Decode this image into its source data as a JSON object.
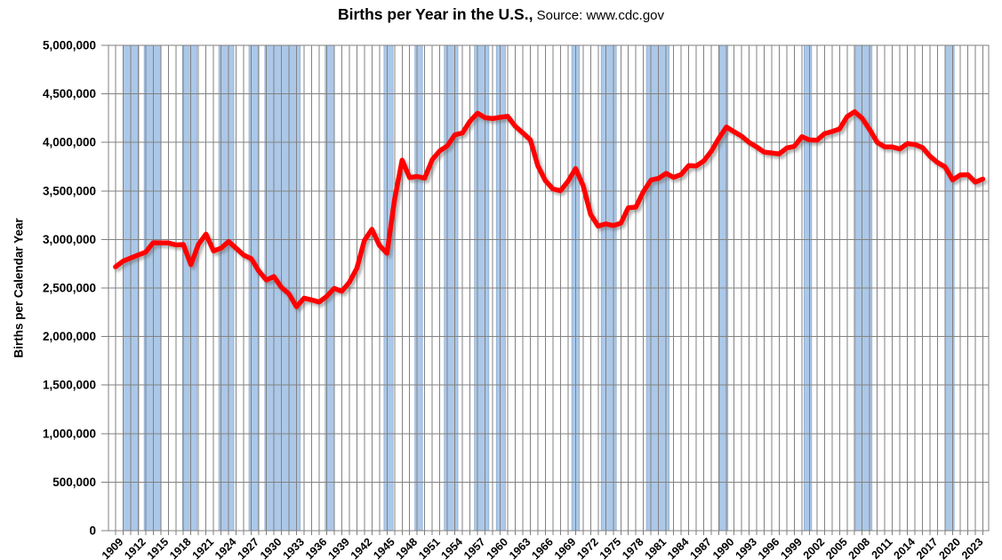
{
  "title": {
    "main": "Births per Year in the U.S.,",
    "source": " Source: www.cdc.gov"
  },
  "y_axis": {
    "title": "Births per Calendar Year",
    "tick_labels": [
      "5,000,000",
      "4,500,000",
      "4,000,000",
      "3,500,000",
      "3,000,000",
      "2,500,000",
      "2,000,000",
      "1,500,000",
      "1,000,000",
      "500,000",
      "0"
    ]
  },
  "x_axis": {
    "tick_labels": [
      "1909",
      "1912",
      "1915",
      "1918",
      "1921",
      "1924",
      "1927",
      "1930",
      "1933",
      "1936",
      "1939",
      "1942",
      "1945",
      "1948",
      "1951",
      "1954",
      "1957",
      "1960",
      "1963",
      "1966",
      "1969",
      "1972",
      "1975",
      "1978",
      "1981",
      "1984",
      "1987",
      "1990",
      "1993",
      "1996",
      "1999",
      "2002",
      "2005",
      "2008",
      "2011",
      "2014",
      "2017",
      "2020",
      "2023"
    ]
  },
  "colors": {
    "line": "#FF0000",
    "band_fill": "#ACC8E8",
    "band_stroke": "#8FAFD2",
    "gridline": "#828282",
    "border": "#7F7F7F",
    "text": "#000000"
  },
  "chart_data": {
    "type": "line",
    "title": "Births per Year in the U.S., Source: www.cdc.gov",
    "xlabel": "",
    "ylabel": "Births per Calendar Year",
    "ylim": [
      0,
      5000000
    ],
    "ytick_step": 500000,
    "xlim": [
      1909,
      2024
    ],
    "grid": "both",
    "legend": "none",
    "x": [
      1909,
      1910,
      1911,
      1912,
      1913,
      1914,
      1915,
      1916,
      1917,
      1918,
      1919,
      1920,
      1921,
      1922,
      1923,
      1924,
      1925,
      1926,
      1927,
      1928,
      1929,
      1930,
      1931,
      1932,
      1933,
      1934,
      1935,
      1936,
      1937,
      1938,
      1939,
      1940,
      1941,
      1942,
      1943,
      1944,
      1945,
      1946,
      1947,
      1948,
      1949,
      1950,
      1951,
      1952,
      1953,
      1954,
      1955,
      1956,
      1957,
      1958,
      1959,
      1960,
      1961,
      1962,
      1963,
      1964,
      1965,
      1966,
      1967,
      1968,
      1969,
      1970,
      1971,
      1972,
      1973,
      1974,
      1975,
      1976,
      1977,
      1978,
      1979,
      1980,
      1981,
      1982,
      1983,
      1984,
      1985,
      1986,
      1987,
      1988,
      1989,
      1990,
      1991,
      1992,
      1993,
      1994,
      1995,
      1996,
      1997,
      1998,
      1999,
      2000,
      2001,
      2002,
      2003,
      2004,
      2005,
      2006,
      2007,
      2008,
      2009,
      2010,
      2011,
      2012,
      2013,
      2014,
      2015,
      2016,
      2017,
      2018,
      2019,
      2020,
      2021,
      2022,
      2023,
      2024
    ],
    "series": [
      {
        "name": "Births per Calendar Year",
        "color": "#FF0000",
        "values": [
          2718000,
          2777000,
          2809000,
          2840000,
          2869000,
          2966000,
          2965000,
          2964000,
          2944000,
          2948000,
          2740000,
          2950000,
          3055000,
          2882000,
          2910000,
          2979000,
          2909000,
          2839000,
          2802000,
          2674000,
          2582000,
          2618000,
          2506000,
          2440000,
          2307000,
          2396000,
          2377000,
          2355000,
          2413000,
          2496000,
          2466000,
          2559000,
          2703000,
          2989000,
          3104000,
          2939000,
          2858000,
          3411000,
          3817000,
          3637000,
          3649000,
          3632000,
          3823000,
          3913000,
          3965000,
          4078000,
          4097000,
          4218000,
          4300000,
          4255000,
          4245000,
          4258000,
          4268000,
          4167000,
          4098000,
          4027000,
          3760000,
          3606000,
          3521000,
          3502000,
          3600000,
          3731000,
          3556000,
          3258000,
          3137000,
          3160000,
          3144000,
          3168000,
          3327000,
          3333000,
          3494000,
          3612000,
          3629000,
          3681000,
          3639000,
          3669000,
          3761000,
          3757000,
          3809000,
          3910000,
          4041000,
          4158000,
          4111000,
          4065000,
          4000000,
          3953000,
          3900000,
          3891000,
          3881000,
          3942000,
          3959000,
          4059000,
          4026000,
          4022000,
          4090000,
          4112000,
          4138000,
          4266000,
          4316000,
          4248000,
          4131000,
          3999000,
          3954000,
          3953000,
          3932000,
          3988000,
          3978000,
          3946000,
          3856000,
          3792000,
          3748000,
          3614000,
          3664000,
          3668000,
          3591000,
          3623000
        ]
      }
    ],
    "shaded_bands": [
      {
        "start": 1910.0,
        "end": 1912.1
      },
      {
        "start": 1912.8,
        "end": 1915.0
      },
      {
        "start": 1917.9,
        "end": 1919.8
      },
      {
        "start": 1922.7,
        "end": 1924.7
      },
      {
        "start": 1926.7,
        "end": 1927.9
      },
      {
        "start": 1928.8,
        "end": 1933.5
      },
      {
        "start": 1936.8,
        "end": 1938.0
      },
      {
        "start": 1944.6,
        "end": 1945.8
      },
      {
        "start": 1948.7,
        "end": 1949.7
      },
      {
        "start": 1952.6,
        "end": 1954.4
      },
      {
        "start": 1956.6,
        "end": 1958.5
      },
      {
        "start": 1959.5,
        "end": 1960.7
      },
      {
        "start": 1969.5,
        "end": 1970.5
      },
      {
        "start": 1973.4,
        "end": 1975.4
      },
      {
        "start": 1979.4,
        "end": 1982.4
      },
      {
        "start": 1989.1,
        "end": 1990.2
      },
      {
        "start": 2000.3,
        "end": 2001.3
      },
      {
        "start": 2007.1,
        "end": 2009.3
      },
      {
        "start": 2019.0,
        "end": 2020.2
      }
    ]
  }
}
